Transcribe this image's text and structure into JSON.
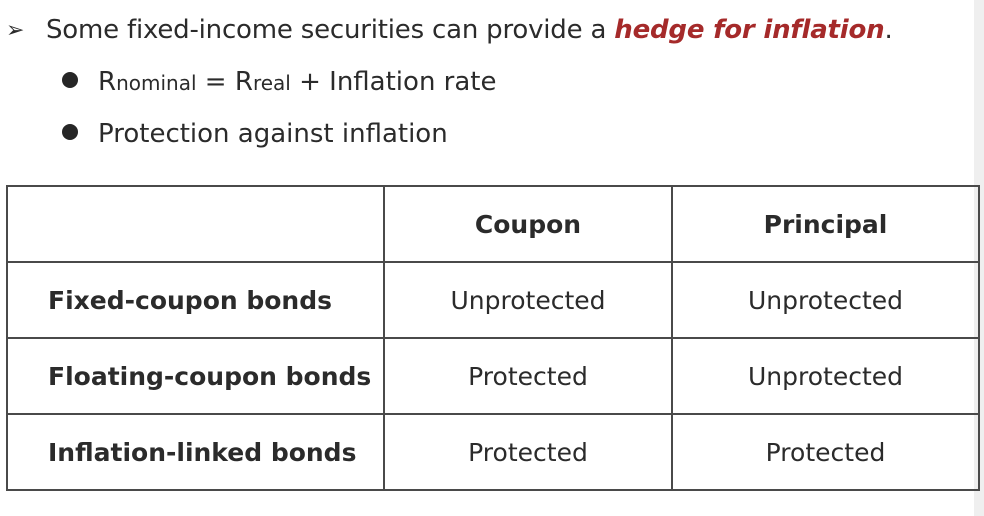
{
  "heading": {
    "bullet_symbol": "➢",
    "text_before": "Some fixed-income securities can provide a ",
    "emphasis": "hedge for inflation",
    "text_after": ".",
    "emphasis_color": "#a52a2a"
  },
  "bullets": {
    "formula": {
      "r1": "R",
      "sub1": "nominal",
      "eq": " = ",
      "r2": "R",
      "sub2": "real",
      "rest": " + Inflation rate"
    },
    "protection": "Protection against inflation"
  },
  "table": {
    "headers": [
      "",
      "Coupon",
      "Principal"
    ],
    "rows": [
      {
        "label": "Fixed-coupon bonds",
        "coupon": "Unprotected",
        "principal": "Unprotected"
      },
      {
        "label": "Floating-coupon bonds",
        "coupon": "Protected",
        "principal": "Unprotected"
      },
      {
        "label": "Inflation-linked bonds",
        "coupon": "Protected",
        "principal": "Protected"
      }
    ]
  }
}
